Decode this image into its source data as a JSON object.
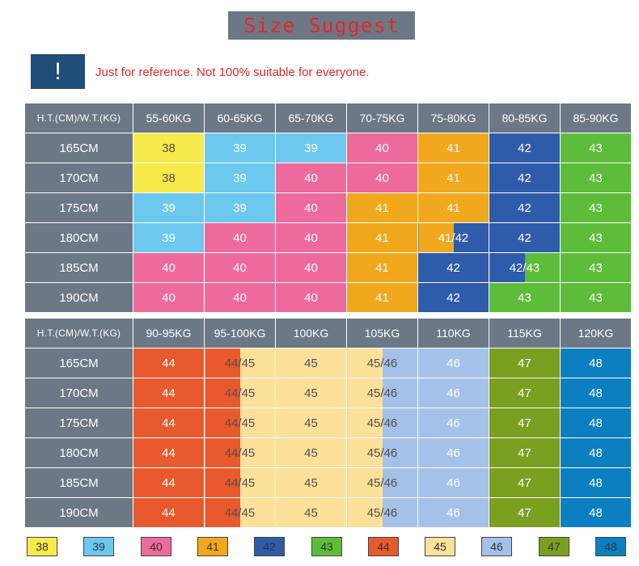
{
  "title": "Size Suggest",
  "warning": {
    "icon": "!",
    "text": "Just for reference. Not 100% suitable for everyone."
  },
  "colors": {
    "38": "#f7ea4a",
    "39": "#6cc8ee",
    "40": "#ee6a9d",
    "41": "#f2a81d",
    "42": "#2f5bab",
    "43": "#5dbd3a",
    "44": "#e85a2d",
    "45": "#fde099",
    "46": "#a4c1e9",
    "47": "#7b9f1f",
    "48": "#0b7fc0"
  },
  "table1": {
    "corner": "H.T.(CM)/W.T.(KG)",
    "columns": [
      "55-60KG",
      "60-65KG",
      "65-70KG",
      "70-75KG",
      "75-80KG",
      "80-85KG",
      "85-90KG"
    ],
    "rows": [
      {
        "height": "165CM",
        "cells": [
          "38",
          "39",
          "39",
          "40",
          "41",
          "42",
          "43"
        ]
      },
      {
        "height": "170CM",
        "cells": [
          "38",
          "39",
          "40",
          "40",
          "41",
          "42",
          "43"
        ]
      },
      {
        "height": "175CM",
        "cells": [
          "39",
          "39",
          "40",
          "41",
          "41",
          "42",
          "43"
        ]
      },
      {
        "height": "180CM",
        "cells": [
          "39",
          "40",
          "40",
          "41",
          "41/42",
          "42",
          "43"
        ]
      },
      {
        "height": "185CM",
        "cells": [
          "40",
          "40",
          "40",
          "41",
          "42",
          "42/43",
          "43"
        ]
      },
      {
        "height": "190CM",
        "cells": [
          "40",
          "40",
          "40",
          "41",
          "42",
          "43",
          "43"
        ]
      }
    ]
  },
  "table2": {
    "corner": "H.T.(CM)/W.T.(KG)",
    "columns": [
      "90-95KG",
      "95-100KG",
      "100KG",
      "105KG",
      "110KG",
      "115KG",
      "120KG"
    ],
    "rows": [
      {
        "height": "165CM",
        "cells": [
          "44",
          "44/45",
          "45",
          "45/46",
          "46",
          "47",
          "48"
        ]
      },
      {
        "height": "170CM",
        "cells": [
          "44",
          "44/45",
          "45",
          "45/46",
          "46",
          "47",
          "48"
        ]
      },
      {
        "height": "175CM",
        "cells": [
          "44",
          "44/45",
          "45",
          "45/46",
          "46",
          "47",
          "48"
        ]
      },
      {
        "height": "180CM",
        "cells": [
          "44",
          "44/45",
          "45",
          "45/46",
          "46",
          "47",
          "48"
        ]
      },
      {
        "height": "185CM",
        "cells": [
          "44",
          "44/45",
          "45",
          "45/46",
          "46",
          "47",
          "48"
        ]
      },
      {
        "height": "190CM",
        "cells": [
          "44",
          "44/45",
          "45",
          "45/46",
          "46",
          "47",
          "48"
        ]
      }
    ]
  },
  "legend": [
    "38",
    "39",
    "40",
    "41",
    "42",
    "43",
    "44",
    "45",
    "46",
    "47",
    "48"
  ]
}
